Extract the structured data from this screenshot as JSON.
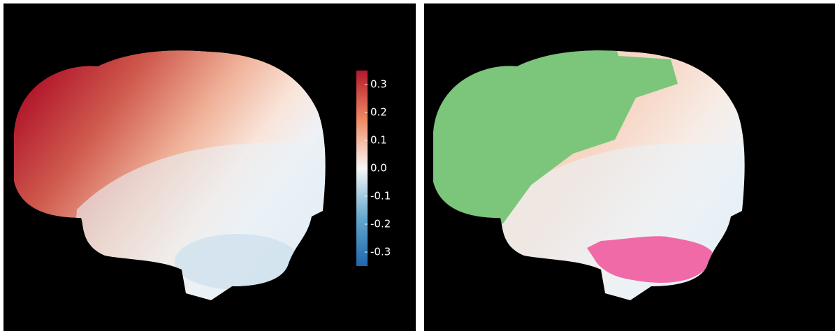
{
  "colorbar": {
    "lim": [
      -0.35,
      0.35
    ],
    "ticks": [
      0.3,
      0.2,
      0.1,
      {
        "value": 0,
        "label": "0.0"
      },
      -0.1,
      -0.2,
      -0.3
    ]
  }
}
